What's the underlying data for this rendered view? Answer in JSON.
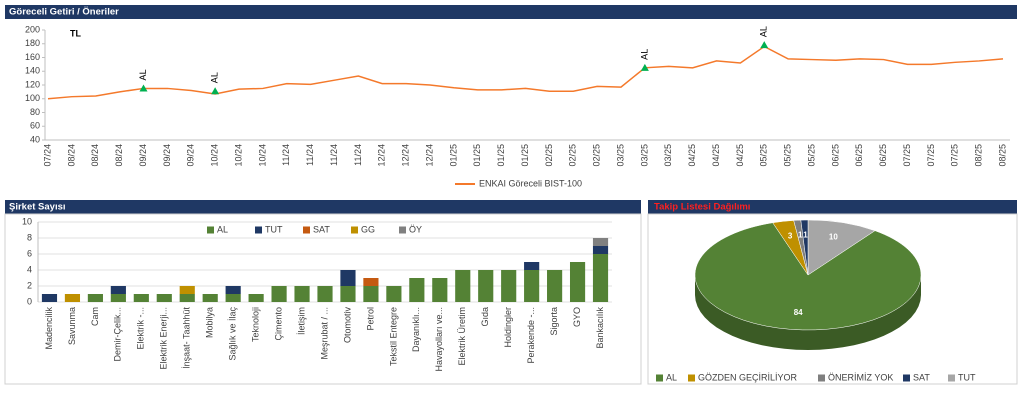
{
  "chart_data": [
    {
      "type": "line",
      "title": "Göreceli Getiri / Öneriler",
      "unit_label": "TL",
      "categories": [
        "07/24",
        "08/24",
        "08/24",
        "08/24",
        "09/24",
        "09/24",
        "09/24",
        "10/24",
        "10/24",
        "10/24",
        "11/24",
        "11/24",
        "11/24",
        "11/24",
        "12/24",
        "12/24",
        "12/24",
        "01/25",
        "01/25",
        "01/25",
        "01/25",
        "02/25",
        "02/25",
        "02/25",
        "03/25",
        "03/25",
        "03/25",
        "04/25",
        "04/25",
        "04/25",
        "05/25",
        "05/25",
        "05/25",
        "06/25",
        "06/25",
        "06/25",
        "07/25",
        "07/25",
        "07/25",
        "08/25",
        "08/25"
      ],
      "series": [
        {
          "name": "ENKAI Göreceli BIST-100",
          "color": "#f4792b",
          "values": [
            100,
            103,
            104,
            110,
            115,
            115,
            112,
            107,
            114,
            115,
            122,
            121,
            127,
            133,
            122,
            122,
            120,
            116,
            113,
            113,
            115,
            111,
            111,
            118,
            117,
            145,
            147,
            145,
            155,
            152,
            176,
            158,
            157,
            156,
            158,
            157,
            150,
            150,
            153,
            155,
            158
          ]
        }
      ],
      "annotations": [
        {
          "text": "AL",
          "x": 4,
          "y": 115
        },
        {
          "text": "AL",
          "x": 7,
          "y": 111
        },
        {
          "text": "AL",
          "x": 25,
          "y": 145
        },
        {
          "text": "AL",
          "x": 30,
          "y": 178
        }
      ],
      "ylim": [
        40,
        200
      ],
      "yticks": [
        40,
        60,
        80,
        100,
        120,
        140,
        160,
        180,
        200
      ]
    },
    {
      "type": "stacked_bar",
      "title": "Şirket Sayısı",
      "categories": [
        "Madencilik",
        "Savunma",
        "Cam",
        "Demir-Çelik...",
        "Elektrik -...",
        "Elektrik Enerji...",
        "İnşaat- Taahhüt",
        "Mobilya",
        "Sağlık ve İlaç",
        "Teknoloji",
        "Çimento",
        "İletişim",
        "Meşrubat / ...",
        "Otomotiv",
        "Petrol",
        "Tekstil Entegre",
        "Dayanıklı...",
        "Havayolları ve...",
        "Elektrik Üretim",
        "Gıda",
        "Holdingler",
        "Perakende -...",
        "Sigorta",
        "GYO",
        "Bankacılık"
      ],
      "series": [
        {
          "name": "AL",
          "color": "#548235",
          "values": [
            0,
            0,
            1,
            1,
            1,
            1,
            1,
            1,
            1,
            1,
            2,
            2,
            2,
            2,
            2,
            2,
            3,
            3,
            4,
            4,
            4,
            4,
            4,
            5,
            6
          ]
        },
        {
          "name": "TUT",
          "color": "#1f3864",
          "values": [
            1,
            0,
            0,
            1,
            0,
            0,
            0,
            0,
            1,
            0,
            0,
            0,
            0,
            2,
            0,
            0,
            0,
            0,
            0,
            0,
            0,
            1,
            0,
            0,
            1
          ]
        },
        {
          "name": "SAT",
          "color": "#c55a11",
          "values": [
            0,
            0,
            0,
            0,
            0,
            0,
            0,
            0,
            0,
            0,
            0,
            0,
            0,
            0,
            1,
            0,
            0,
            0,
            0,
            0,
            0,
            0,
            0,
            0,
            0
          ]
        },
        {
          "name": "GG",
          "color": "#bf9000",
          "values": [
            0,
            1,
            0,
            0,
            0,
            0,
            1,
            0,
            0,
            0,
            0,
            0,
            0,
            0,
            0,
            0,
            0,
            0,
            0,
            0,
            0,
            0,
            0,
            0,
            0
          ]
        },
        {
          "name": "ÖY",
          "color": "#808080",
          "values": [
            0,
            0,
            0,
            0,
            0,
            0,
            0,
            0,
            0,
            0,
            0,
            0,
            0,
            0,
            0,
            0,
            0,
            0,
            0,
            0,
            0,
            0,
            0,
            0,
            1
          ]
        }
      ],
      "ylim": [
        0,
        10
      ],
      "yticks": [
        0,
        2,
        4,
        6,
        8,
        10
      ]
    },
    {
      "type": "pie",
      "title": "Takip Listesi Dağılımı",
      "labels": [
        "AL",
        "GÖZDEN GEÇİRİLİYOR",
        "ÖNERİMİZ YOK",
        "SAT",
        "TUT"
      ],
      "values": [
        84,
        3,
        1,
        1,
        10
      ],
      "colors": [
        "#548235",
        "#bf9000",
        "#7f7f7f",
        "#1f3864",
        "#a6a6a6"
      ]
    }
  ]
}
